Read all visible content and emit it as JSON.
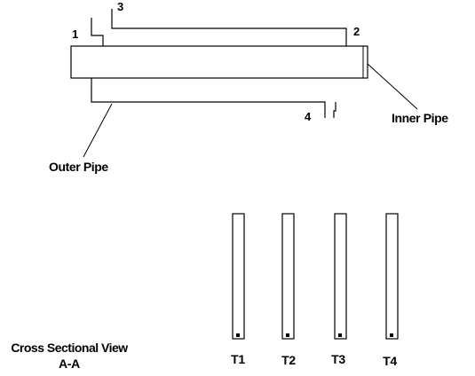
{
  "diagram": {
    "port_labels": [
      "1",
      "2",
      "3",
      "4"
    ],
    "inner_pipe_label": "Inner Pipe",
    "outer_pipe_label": "Outer Pipe",
    "section_title_line1": "Cross Sectional View",
    "section_title_line2": "A-A",
    "thermocouples": [
      "T1",
      "T2",
      "T3",
      "T4"
    ]
  },
  "colors": {
    "line": "#000000",
    "background": "#ffffff"
  }
}
